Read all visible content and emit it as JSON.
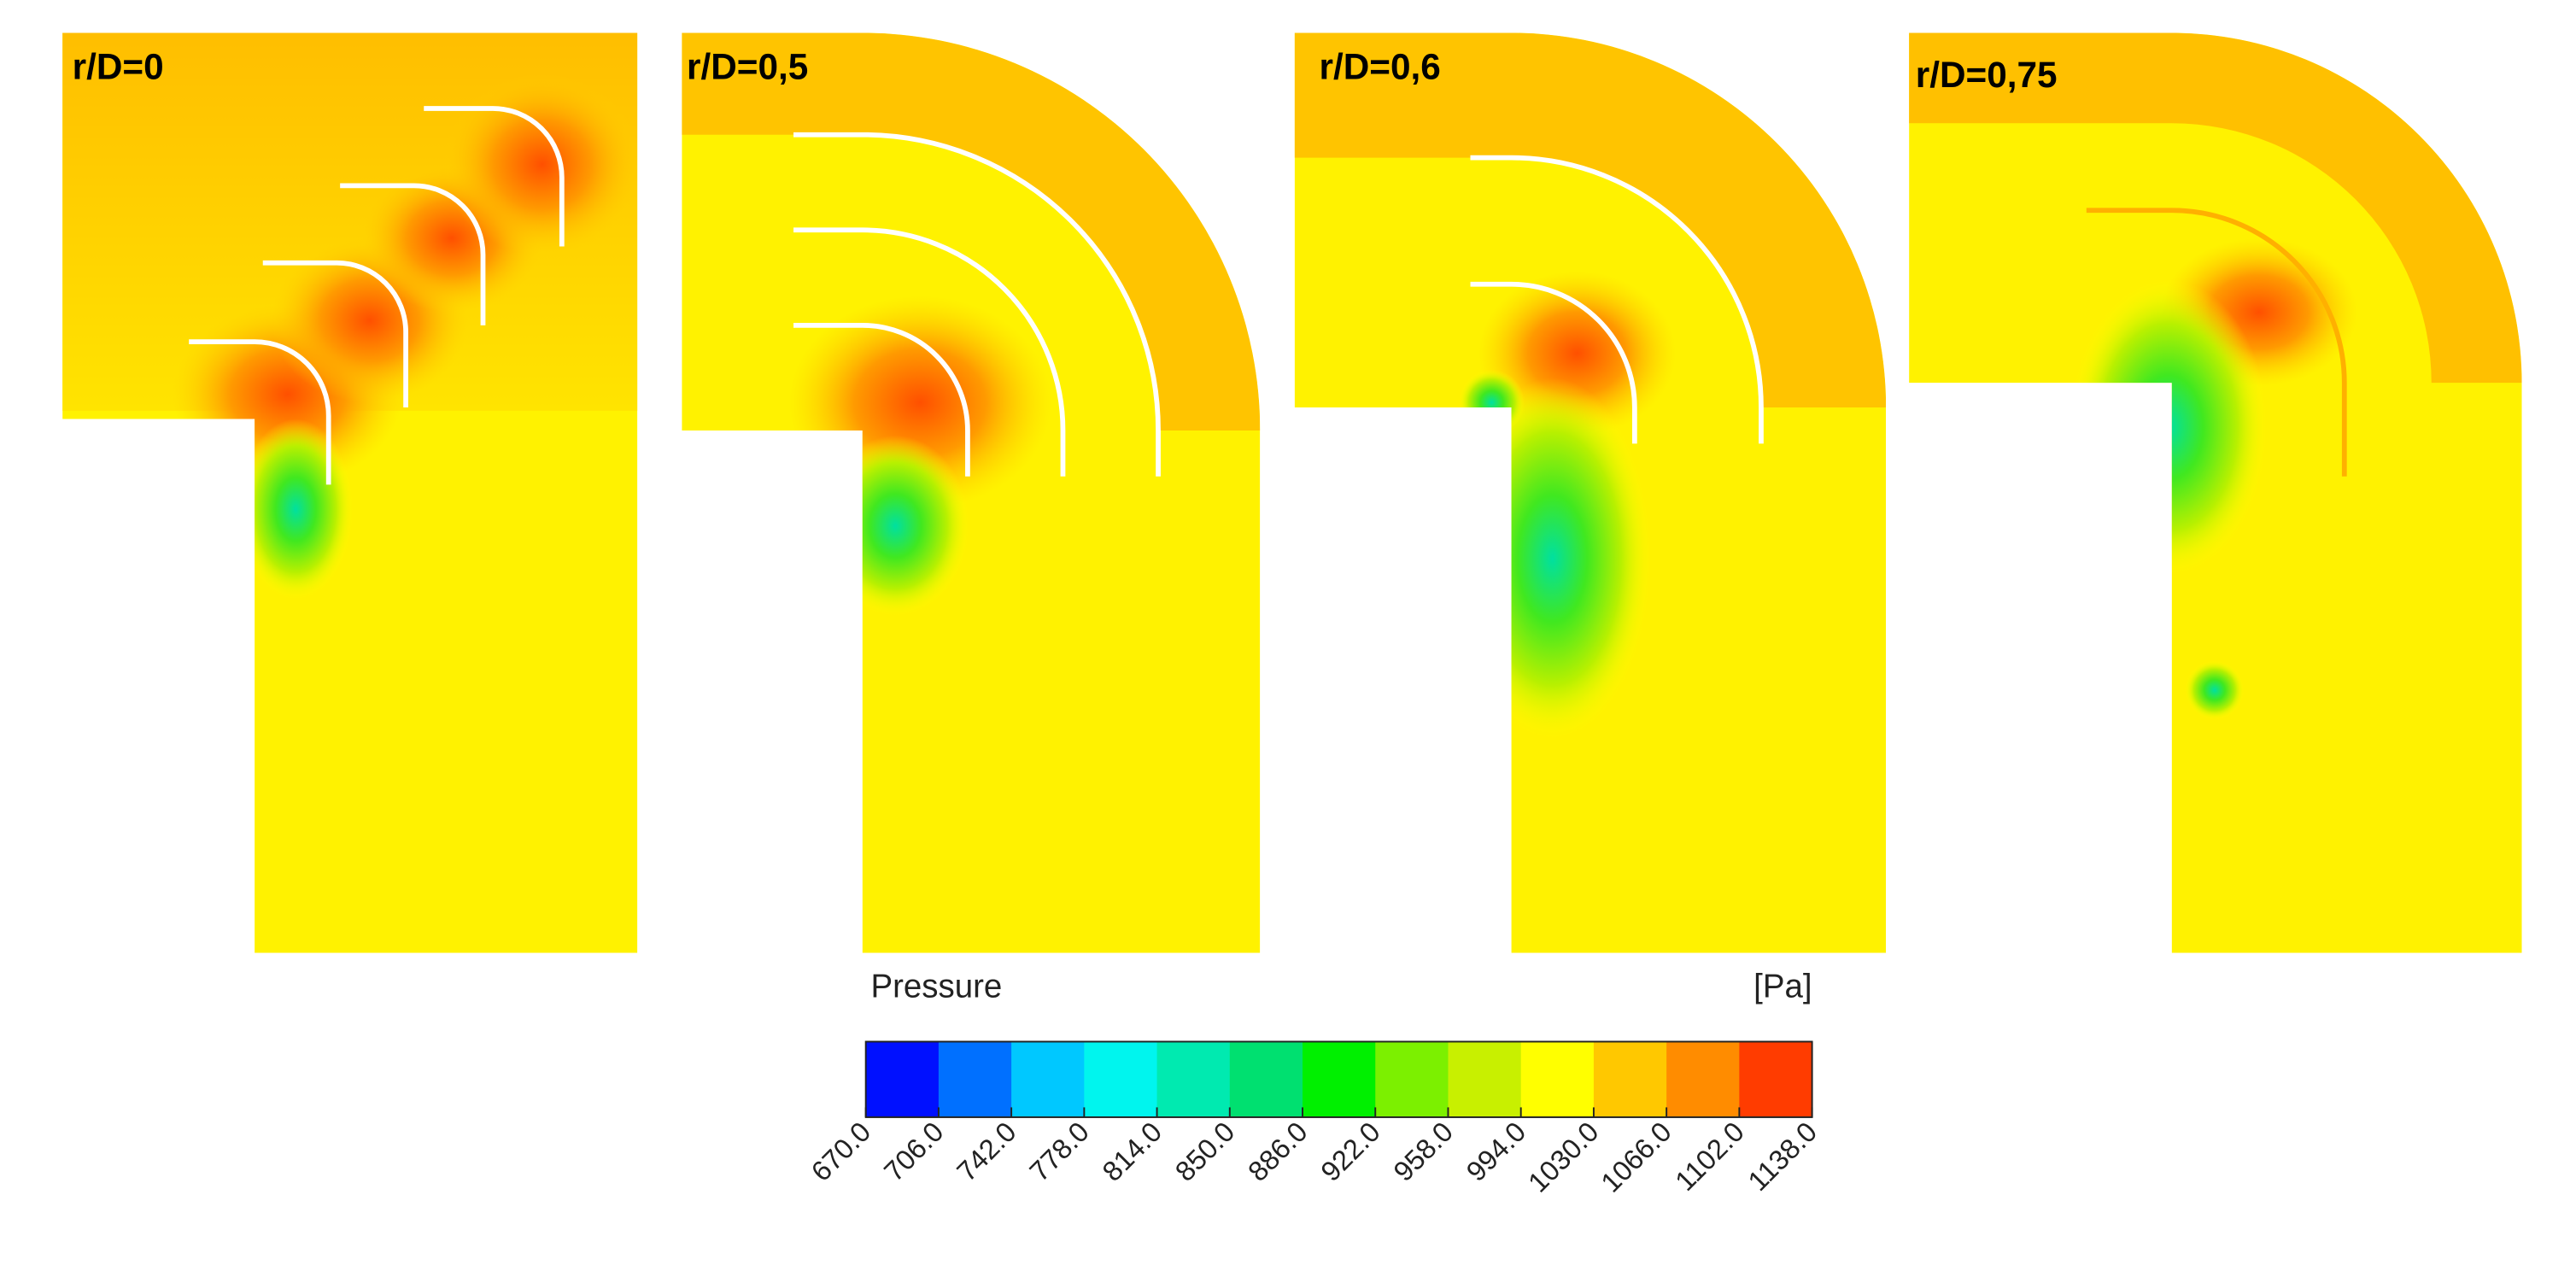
{
  "panels": [
    {
      "label": "r/D=0"
    },
    {
      "label": "r/D=0,5"
    },
    {
      "label": "r/D=0,6"
    },
    {
      "label": "r/D=0,75"
    }
  ],
  "colorbar": {
    "title": "Pressure",
    "unit": "[Pa]",
    "lim": [
      670,
      1138
    ],
    "ticks": [
      {
        "value": 670,
        "label": "670.0"
      },
      {
        "value": 706,
        "label": "706.0"
      },
      {
        "value": 742,
        "label": "742.0"
      },
      {
        "value": 778,
        "label": "778.0"
      },
      {
        "value": 814,
        "label": "814.0"
      },
      {
        "value": 850,
        "label": "850.0"
      },
      {
        "value": 886,
        "label": "886.0"
      },
      {
        "value": 922,
        "label": "922.0"
      },
      {
        "value": 958,
        "label": "958.0"
      },
      {
        "value": 994,
        "label": "994.0"
      },
      {
        "value": 1030,
        "label": "1030.0"
      },
      {
        "value": 1066,
        "label": "1066.0"
      },
      {
        "value": 1102,
        "label": "1102.0"
      },
      {
        "value": 1138,
        "label": "1138.0"
      }
    ],
    "colors": [
      "#0010ff",
      "#0070ff",
      "#00c8ff",
      "#00f5ee",
      "#00eab0",
      "#00e070",
      "#00f000",
      "#7cf000",
      "#c8f000",
      "#ffff00",
      "#ffc800",
      "#ff8c00",
      "#ff3c00"
    ]
  }
}
